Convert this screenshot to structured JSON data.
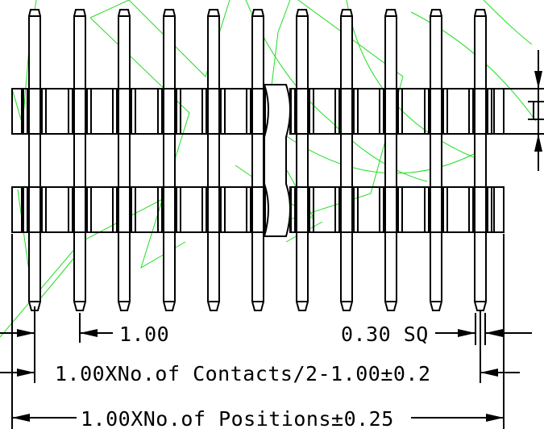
{
  "drawing": {
    "line_color": "#000000",
    "sketch_color": "#22dd22",
    "annotations": {
      "pitch": "1.00",
      "pin_size": "0.30 SQ",
      "row_length": "1.00XNo.of Contacts/2-1.00±0.2",
      "total_length": "1.00XNo.of Positions±0.25"
    }
  }
}
